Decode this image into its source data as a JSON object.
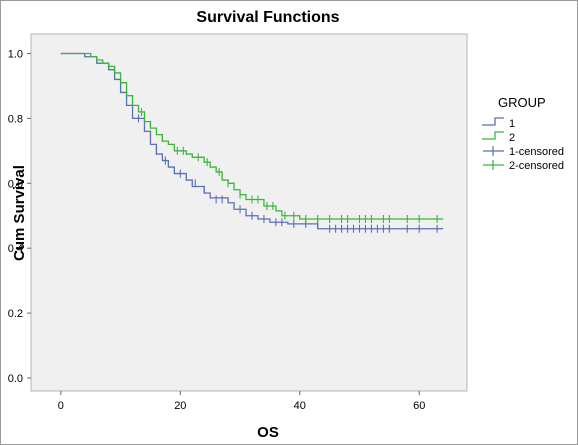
{
  "chart_data": {
    "type": "line",
    "title": "Survival Functions",
    "xlabel": "OS",
    "ylabel": "Cum Survival",
    "xlim": [
      -5,
      68
    ],
    "ylim": [
      -0.04,
      1.06
    ],
    "xticks": [
      0,
      20,
      40,
      60
    ],
    "yticks": [
      0.0,
      0.2,
      0.4,
      0.6,
      0.8,
      1.0
    ],
    "xtick_labels": [
      "0",
      "20",
      "40",
      "60"
    ],
    "ytick_labels": [
      "0.0",
      "0.2",
      "0.4",
      "0.6",
      "0.8",
      "1.0"
    ],
    "grid": false,
    "plot_background": "#f0f0f0",
    "legend": {
      "title": "GROUP",
      "position": "right",
      "entries": [
        {
          "label": "1",
          "kind": "step",
          "color": "#5b6fb5"
        },
        {
          "label": "2",
          "kind": "step",
          "color": "#3cb53c"
        },
        {
          "label": "1-censored",
          "kind": "censor",
          "color": "#5b6fb5"
        },
        {
          "label": "2-censored",
          "kind": "censor",
          "color": "#3cb53c"
        }
      ]
    },
    "series": [
      {
        "name": "1",
        "color": "#5b6fb5",
        "steps": [
          [
            0,
            1.0
          ],
          [
            4,
            0.99
          ],
          [
            6,
            0.97
          ],
          [
            8,
            0.95
          ],
          [
            9,
            0.92
          ],
          [
            10,
            0.88
          ],
          [
            11,
            0.84
          ],
          [
            12,
            0.8
          ],
          [
            14,
            0.76
          ],
          [
            15,
            0.72
          ],
          [
            16,
            0.69
          ],
          [
            17,
            0.67
          ],
          [
            18,
            0.65
          ],
          [
            19,
            0.63
          ],
          [
            21,
            0.61
          ],
          [
            22,
            0.59
          ],
          [
            24,
            0.57
          ],
          [
            25,
            0.555
          ],
          [
            28,
            0.54
          ],
          [
            29,
            0.52
          ],
          [
            31,
            0.5
          ],
          [
            33,
            0.49
          ],
          [
            35,
            0.48
          ],
          [
            38,
            0.475
          ],
          [
            43,
            0.46
          ],
          [
            64,
            0.46
          ]
        ],
        "censored": [
          [
            13,
            0.8
          ],
          [
            16,
            0.7
          ],
          [
            17.5,
            0.67
          ],
          [
            20,
            0.63
          ],
          [
            22.5,
            0.6
          ],
          [
            24,
            0.58
          ],
          [
            26,
            0.55
          ],
          [
            27,
            0.55
          ],
          [
            30,
            0.52
          ],
          [
            32,
            0.5
          ],
          [
            34,
            0.49
          ],
          [
            36,
            0.48
          ],
          [
            37,
            0.48
          ],
          [
            39,
            0.475
          ],
          [
            41,
            0.475
          ],
          [
            43,
            0.475
          ],
          [
            45,
            0.46
          ],
          [
            46,
            0.46
          ],
          [
            47,
            0.46
          ],
          [
            48,
            0.46
          ],
          [
            49,
            0.46
          ],
          [
            50,
            0.46
          ],
          [
            51,
            0.46
          ],
          [
            52,
            0.46
          ],
          [
            53,
            0.46
          ],
          [
            54,
            0.46
          ],
          [
            55,
            0.46
          ],
          [
            58,
            0.46
          ],
          [
            60,
            0.46
          ],
          [
            63,
            0.46
          ]
        ]
      },
      {
        "name": "2",
        "color": "#3cb53c",
        "steps": [
          [
            0,
            1.0
          ],
          [
            5,
            0.99
          ],
          [
            6,
            0.98
          ],
          [
            7,
            0.97
          ],
          [
            8,
            0.96
          ],
          [
            9,
            0.94
          ],
          [
            10,
            0.91
          ],
          [
            11,
            0.87
          ],
          [
            12,
            0.84
          ],
          [
            13,
            0.82
          ],
          [
            14,
            0.79
          ],
          [
            15,
            0.77
          ],
          [
            16,
            0.75
          ],
          [
            17,
            0.73
          ],
          [
            18,
            0.72
          ],
          [
            19,
            0.7
          ],
          [
            21,
            0.69
          ],
          [
            22,
            0.68
          ],
          [
            24,
            0.665
          ],
          [
            25,
            0.65
          ],
          [
            26,
            0.635
          ],
          [
            27,
            0.61
          ],
          [
            28,
            0.6
          ],
          [
            29,
            0.58
          ],
          [
            30,
            0.565
          ],
          [
            31,
            0.55
          ],
          [
            34,
            0.53
          ],
          [
            36,
            0.515
          ],
          [
            37,
            0.5
          ],
          [
            40,
            0.49
          ],
          [
            64,
            0.49
          ]
        ],
        "censored": [
          [
            12,
            0.85
          ],
          [
            13.5,
            0.82
          ],
          [
            15,
            0.78
          ],
          [
            17,
            0.74
          ],
          [
            19.5,
            0.7
          ],
          [
            20.5,
            0.7
          ],
          [
            23,
            0.68
          ],
          [
            24.5,
            0.665
          ],
          [
            26.5,
            0.635
          ],
          [
            28,
            0.6
          ],
          [
            30,
            0.565
          ],
          [
            32,
            0.55
          ],
          [
            33,
            0.55
          ],
          [
            34.5,
            0.53
          ],
          [
            35.5,
            0.53
          ],
          [
            37.5,
            0.5
          ],
          [
            39,
            0.5
          ],
          [
            41,
            0.49
          ],
          [
            43,
            0.49
          ],
          [
            45,
            0.49
          ],
          [
            47,
            0.49
          ],
          [
            48,
            0.49
          ],
          [
            50,
            0.49
          ],
          [
            51,
            0.49
          ],
          [
            52,
            0.49
          ],
          [
            54,
            0.49
          ],
          [
            55,
            0.49
          ],
          [
            58,
            0.49
          ],
          [
            60,
            0.49
          ],
          [
            63,
            0.49
          ]
        ]
      }
    ]
  }
}
